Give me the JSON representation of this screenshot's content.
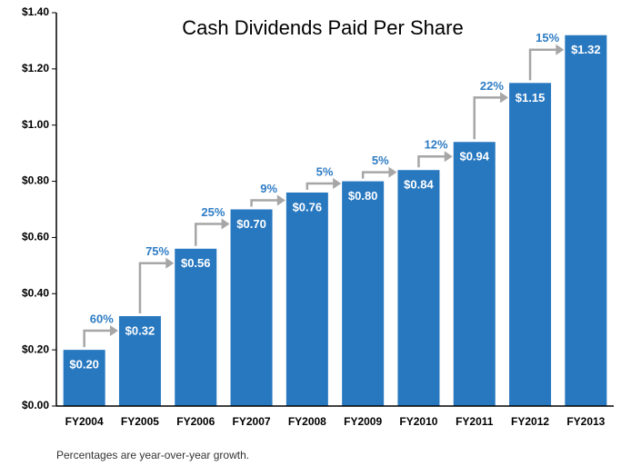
{
  "chart_data": {
    "type": "bar",
    "title": "Cash Dividends Paid Per Share",
    "categories": [
      "FY2004",
      "FY2005",
      "FY2006",
      "FY2007",
      "FY2008",
      "FY2009",
      "FY2010",
      "FY2011",
      "FY2012",
      "FY2013"
    ],
    "values": [
      0.2,
      0.32,
      0.56,
      0.7,
      0.76,
      0.8,
      0.84,
      0.94,
      1.15,
      1.32
    ],
    "value_labels": [
      "$0.20",
      "$0.32",
      "$0.56",
      "$0.70",
      "$0.76",
      "$0.80",
      "$0.84",
      "$0.94",
      "$1.15",
      "$1.32"
    ],
    "growth_labels": [
      "60%",
      "75%",
      "25%",
      "9%",
      "5%",
      "5%",
      "12%",
      "22%",
      "15%"
    ],
    "color": "#2878c0",
    "ylim": [
      0,
      1.4
    ],
    "yticks": [
      {
        "value": 0,
        "label": "$0.00"
      },
      {
        "value": 0.2,
        "label": "$0.20"
      },
      {
        "value": 0.4,
        "label": "$0.40"
      },
      {
        "value": 0.6,
        "label": "$0.60"
      },
      {
        "value": 0.8,
        "label": "$0.80"
      },
      {
        "value": 1.0,
        "label": "$1.00"
      },
      {
        "value": 1.2,
        "label": "$1.20"
      },
      {
        "value": 1.4,
        "label": "$1.40"
      }
    ],
    "grid": false,
    "footnote": "Percentages are year-over-year growth."
  }
}
